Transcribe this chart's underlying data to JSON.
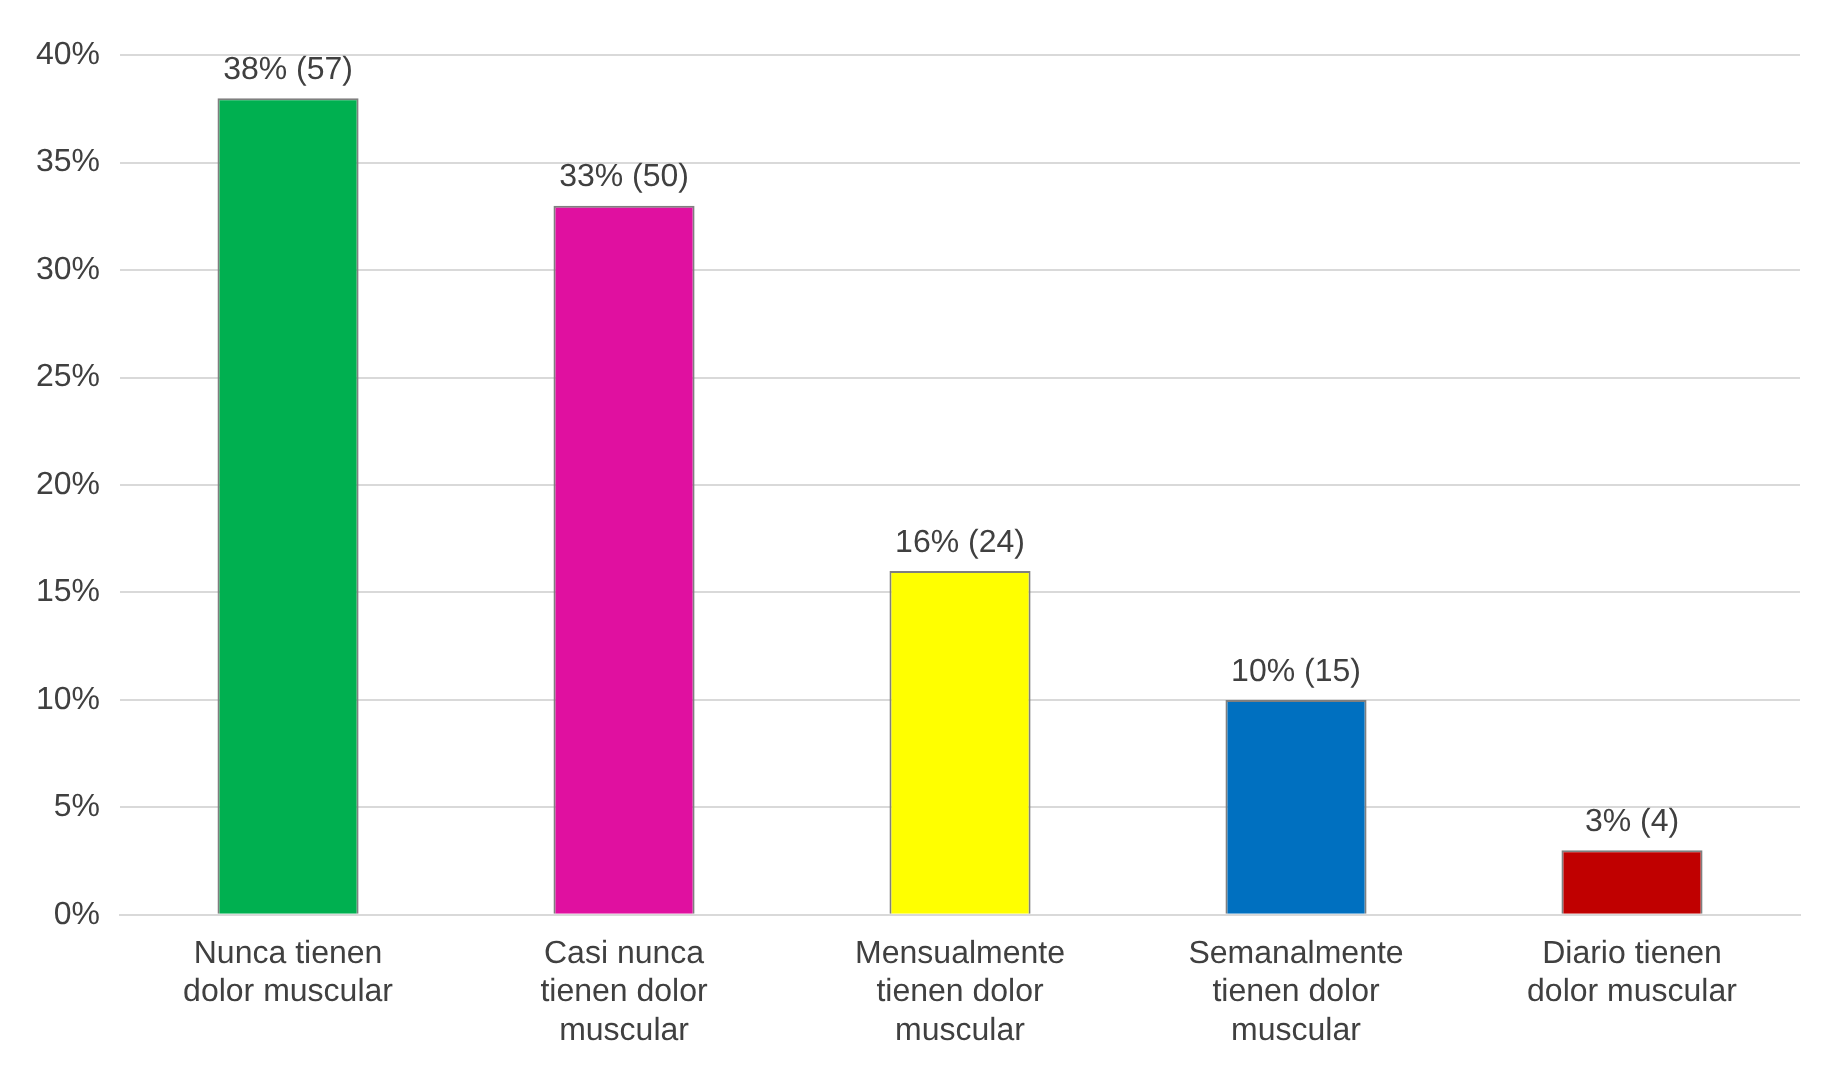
{
  "chart_data": {
    "type": "bar",
    "categories": [
      "Nunca tienen dolor muscular",
      "Casi nunca tienen dolor muscular",
      "Mensualmente tienen dolor muscular",
      "Semanalmente tienen dolor muscular",
      "Diario tienen dolor muscular"
    ],
    "values": [
      38,
      33,
      16,
      10,
      3
    ],
    "colors": [
      "#00b050",
      "#e010a0",
      "#ffff00",
      "#0070c0",
      "#c00000"
    ],
    "value_labels": [
      "38% (57)",
      "33% (50)",
      "16% (24)",
      "10% (15)",
      "3% (4)"
    ],
    "ylim": [
      0,
      40
    ],
    "yticks": [
      {
        "value": 0,
        "label": "0%"
      },
      {
        "value": 5,
        "label": "5%"
      },
      {
        "value": 10,
        "label": "10%"
      },
      {
        "value": 15,
        "label": "15%"
      },
      {
        "value": 20,
        "label": "20%"
      },
      {
        "value": 25,
        "label": "25%"
      },
      {
        "value": 30,
        "label": "30%"
      },
      {
        "value": 35,
        "label": "35%"
      },
      {
        "value": 40,
        "label": "40%"
      }
    ],
    "grid": "y"
  }
}
